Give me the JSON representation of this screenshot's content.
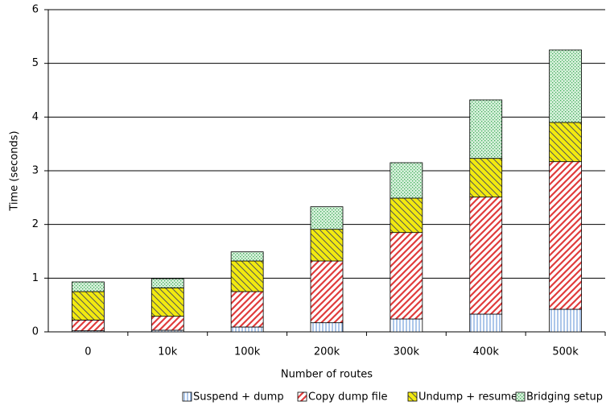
{
  "chart_data": {
    "type": "stacked_bar",
    "xlabel": "Number of routes",
    "ylabel": "Time (seconds)",
    "categories": [
      "0",
      "10k",
      "100k",
      "200k",
      "300k",
      "400k",
      "500k"
    ],
    "series": [
      {
        "name": "Suspend + dump",
        "color": "#5b8fd6",
        "values": [
          0.02,
          0.03,
          0.09,
          0.17,
          0.24,
          0.33,
          0.42
        ]
      },
      {
        "name": "Copy dump file",
        "color": "#e03c3c",
        "values": [
          0.2,
          0.26,
          0.66,
          1.15,
          1.61,
          2.18,
          2.75
        ]
      },
      {
        "name": "Undump + resume",
        "color": "#f2ea10",
        "values": [
          0.53,
          0.53,
          0.57,
          0.59,
          0.64,
          0.72,
          0.73
        ]
      },
      {
        "name": "Bridging setup",
        "color": "#3fae5a",
        "values": [
          0.18,
          0.17,
          0.17,
          0.42,
          0.66,
          1.09,
          1.35
        ]
      }
    ],
    "ylim": [
      0,
      6
    ],
    "yticks": [
      0,
      1,
      2,
      3,
      4,
      5,
      6
    ],
    "grid": true,
    "legend": "bottom"
  }
}
